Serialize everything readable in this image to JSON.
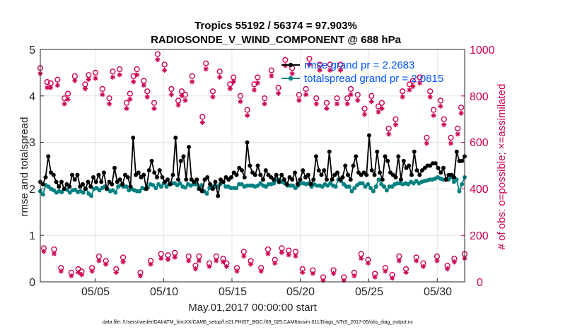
{
  "chart_data": {
    "type": "line",
    "title": "Tropics 55192 / 56374 = 97.903%",
    "subtitle": "RADIOSONDE_V_WIND_COMPONENT @ 688 hPa",
    "xlabel": "May.01,2017 00:00:00 start",
    "ylabel_left": "rmse and totalspread",
    "ylabel_right": "# of obs: o=possible; ×=assimilated",
    "ylim_left": [
      0,
      5
    ],
    "ylim_right": [
      0,
      1000
    ],
    "xlim": [
      1,
      32
    ],
    "x_tick_labels": [
      "05/05",
      "05/10",
      "05/15",
      "05/20",
      "05/25",
      "05/30"
    ],
    "x_tick_days": [
      5,
      10,
      15,
      20,
      25,
      30
    ],
    "y_left_ticks": [
      "0",
      "1",
      "2",
      "3",
      "4",
      "5"
    ],
    "y_right_ticks": [
      "0",
      "200",
      "400",
      "600",
      "800",
      "1000"
    ],
    "grid": true,
    "legend": [
      "rmse grand pr = 2.2683",
      "totalspread grand pr = 2.0815"
    ],
    "series": [
      {
        "name": "rmse",
        "color": "#000000",
        "axis": "left",
        "values": [
          2.15,
          2.1,
          2.25,
          2.7,
          2.35,
          2.3,
          2.15,
          2.05,
          2.15,
          2.0,
          2.1,
          2.05,
          2.3,
          2.2,
          2.3,
          2.05,
          2.1,
          2.0,
          2.15,
          2.05,
          2.25,
          2.15,
          2.3,
          2.15,
          2.35,
          2.0,
          2.15,
          2.1,
          2.45,
          2.15,
          2.2,
          2.1,
          2.3,
          2.25,
          2.05,
          3.1,
          2.3,
          2.35,
          2.25,
          2.3,
          2.0,
          2.4,
          2.6,
          2.35,
          2.25,
          2.4,
          2.25,
          2.15,
          2.2,
          2.1,
          2.3,
          3.1,
          2.2,
          2.6,
          2.7,
          2.2,
          2.9,
          2.2,
          2.15,
          2.2,
          2.0,
          1.95,
          2.2,
          2.25,
          2.1,
          2.0,
          2.15,
          1.85,
          2.2,
          2.15,
          2.25,
          2.2,
          2.25,
          2.35,
          2.3,
          2.45,
          2.4,
          2.25,
          3.0,
          2.5,
          2.35,
          2.3,
          2.5,
          2.3,
          2.2,
          2.4,
          2.3,
          2.25,
          2.2,
          2.3,
          2.15,
          2.3,
          2.2,
          2.1,
          2.25,
          2.2,
          2.35,
          2.1,
          2.2,
          2.4,
          2.25,
          2.3,
          2.1,
          2.2,
          2.7,
          2.4,
          2.3,
          2.4,
          2.2,
          2.8,
          2.2,
          2.3,
          2.35,
          2.2,
          2.25,
          2.5,
          2.3,
          2.2,
          2.5,
          2.7,
          2.35,
          2.3,
          2.35,
          2.3,
          3.15,
          2.4,
          2.3,
          2.8,
          2.35,
          2.2,
          2.7,
          2.6,
          2.35,
          2.3,
          2.25,
          2.7,
          2.2,
          2.6,
          2.45,
          2.5,
          2.3,
          2.8,
          2.4,
          2.3,
          2.4,
          2.45,
          2.5,
          2.5,
          2.55,
          2.55,
          2.45,
          2.35,
          2.45,
          2.2,
          2.3,
          2.3,
          2.25,
          2.8,
          2.6,
          2.6,
          2.7
        ]
      },
      {
        "name": "totalspread",
        "color": "#008080",
        "axis": "left",
        "values": [
          1.95,
          1.88,
          2.08,
          2.05,
          2.0,
          1.97,
          1.92,
          1.95,
          1.93,
          2.0,
          1.98,
          1.92,
          1.97,
          1.98,
          1.93,
          1.95,
          1.92,
          2.0,
          1.9,
          1.85,
          2.0,
          2.02,
          1.97,
          2.02,
          2.05,
          2.0,
          1.95,
          1.97,
          1.92,
          2.05,
          2.08,
          2.05,
          2.05,
          1.97,
          2.0,
          1.97,
          1.95,
          1.95,
          2.02,
          2.0,
          2.03,
          2.1,
          2.08,
          2.02,
          2.1,
          2.05,
          2.12,
          2.05,
          2.1,
          2.12,
          2.12,
          2.08,
          2.12,
          2.05,
          2.03,
          2.1,
          2.07,
          2.1,
          2.1,
          2.0,
          2.08,
          1.95,
          1.9,
          2.02,
          2.05,
          2.05,
          2.05,
          2.1,
          2.15,
          2.05,
          2.05,
          2.02,
          2.02,
          2.02,
          2.1,
          2.1,
          2.05,
          2.07,
          2.07,
          2.07,
          2.05,
          2.07,
          2.12,
          2.07,
          2.05,
          2.1,
          2.1,
          2.12,
          2.2,
          2.2,
          2.15,
          2.12,
          2.07,
          2.07,
          2.07,
          2.02,
          2.07,
          2.12,
          2.12,
          2.1,
          2.12,
          2.05,
          2.1,
          2.07,
          2.07,
          2.05,
          2.1,
          2.07,
          2.12,
          2.07,
          2.05,
          2.2,
          2.17,
          2.1,
          2.05,
          2.05,
          1.95,
          2.02,
          2.08,
          2.12,
          2.12,
          2.05,
          2.1,
          2.02,
          1.95,
          2.05,
          2.2,
          2.1,
          2.05,
          1.97,
          2.05,
          2.05,
          2.1,
          2.12,
          2.12,
          2.1,
          2.12,
          2.1,
          2.15,
          2.12,
          2.17,
          2.12,
          2.15,
          2.17,
          2.18,
          2.2,
          2.2,
          2.22,
          2.25,
          2.22,
          2.2,
          2.2,
          2.2,
          2.25,
          2.15,
          2.2,
          1.95,
          2.1,
          2.25
        ]
      },
      {
        "name": "obs possible",
        "color": "#cc0052",
        "axis": "right",
        "marker": "o",
        "values": [
          920,
          145,
          860,
          855,
          140,
          870,
          60,
          790,
          810,
          40,
          885,
          55,
          45,
          850,
          890,
          60,
          900,
          110,
          830,
          90,
          790,
          905,
          55,
          915,
          105,
          770,
          810,
          885,
          915,
          40,
          865,
          820,
          90,
          770,
          980,
          120,
          935,
          115,
          830,
          125,
          780,
          820,
          805,
          110,
          885,
          70,
          110,
          710,
          940,
          80,
          820,
          110,
          905,
          100,
          80,
          850,
          880,
          60,
          800,
          130,
          740,
          90,
          850,
          880,
          60,
          790,
          140,
          910,
          95,
          835,
          145,
          955,
          135,
          920,
          130,
          805,
          55,
          830,
          960,
          50,
          790,
          935,
          20,
          770,
          935,
          50,
          790,
          935,
          20,
          790,
          830,
          40,
          805,
          120,
          745,
          95,
          800,
          35,
          755,
          770,
          60,
          660,
          30,
          700,
          110,
          820,
          55,
          850,
          865,
          105,
          880,
          80,
          620,
          820,
          740,
          110,
          780,
          700,
          70,
          620,
          100,
          660,
          750,
          120
        ]
      },
      {
        "name": "obs assimilated",
        "color": "#cc0052",
        "axis": "right",
        "marker": "x",
        "values": [
          905,
          140,
          845,
          845,
          130,
          855,
          55,
          775,
          795,
          35,
          875,
          50,
          40,
          840,
          880,
          55,
          885,
          100,
          815,
          85,
          775,
          890,
          50,
          900,
          95,
          755,
          795,
          870,
          900,
          35,
          855,
          805,
          85,
          755,
          965,
          110,
          920,
          105,
          815,
          115,
          770,
          810,
          790,
          100,
          870,
          65,
          100,
          695,
          925,
          75,
          805,
          100,
          890,
          95,
          75,
          840,
          870,
          55,
          785,
          120,
          725,
          85,
          835,
          865,
          55,
          775,
          130,
          895,
          90,
          820,
          135,
          940,
          125,
          905,
          120,
          790,
          50,
          815,
          945,
          45,
          775,
          920,
          15,
          755,
          920,
          45,
          775,
          920,
          15,
          775,
          815,
          35,
          790,
          110,
          730,
          90,
          785,
          30,
          740,
          755,
          55,
          645,
          25,
          685,
          100,
          805,
          50,
          835,
          850,
          100,
          865,
          75,
          605,
          805,
          725,
          100,
          765,
          685,
          65,
          605,
          95,
          645,
          735,
          110
        ]
      }
    ],
    "footnote": "data file: /Users/raeder/DAI/ATM_forcXX/CAM6_setup/f.e21.FHIST_BGC.f09_025.CAM6assim.011/Diags_NTrS_2017-05/obs_diag_output.nc"
  }
}
